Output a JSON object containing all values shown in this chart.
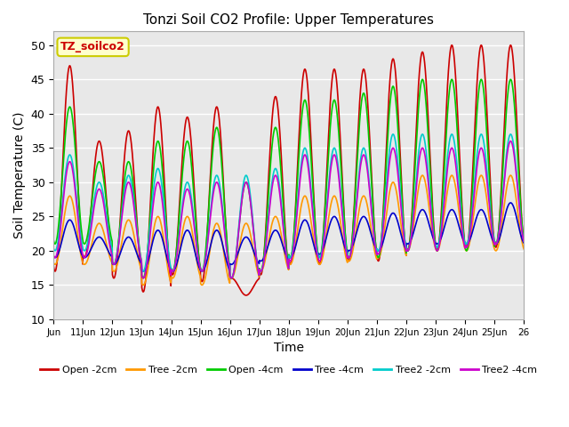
{
  "title": "Tonzi Soil CO2 Profile: Upper Temperatures",
  "xlabel": "Time",
  "ylabel": "Soil Temperature (C)",
  "ylim": [
    10,
    52
  ],
  "yticks": [
    10,
    15,
    20,
    25,
    30,
    35,
    40,
    45,
    50
  ],
  "xtick_labels": [
    "Jun",
    "11Jun",
    "12Jun",
    "13Jun",
    "14Jun",
    "15Jun",
    "16Jun",
    "17Jun",
    "18Jun",
    "19Jun",
    "20Jun",
    "21Jun",
    "22Jun",
    "23Jun",
    "24Jun",
    "25Jun",
    "26"
  ],
  "series": [
    {
      "label": "Open -2cm",
      "color": "#CC0000",
      "lw": 1.2
    },
    {
      "label": "Tree -2cm",
      "color": "#FF9900",
      "lw": 1.2
    },
    {
      "label": "Open -4cm",
      "color": "#00CC00",
      "lw": 1.2
    },
    {
      "label": "Tree -4cm",
      "color": "#0000CC",
      "lw": 1.2
    },
    {
      "label": "Tree2 -2cm",
      "color": "#00CCCC",
      "lw": 1.2
    },
    {
      "label": "Tree2 -4cm",
      "color": "#CC00CC",
      "lw": 1.2
    }
  ],
  "legend_box_color": "#FFFFCC",
  "legend_box_edge": "#CCCC00",
  "legend_text": "TZ_soilco2",
  "bg_color": "#E8E8E8",
  "grid_color": "#FFFFFF",
  "open2_peaks": [
    47,
    36,
    37.5,
    41,
    39.5,
    41,
    13.5,
    42.5,
    46.5,
    46.5,
    46.5,
    48,
    49,
    50,
    50,
    50
  ],
  "open2_trough": [
    17,
    19,
    16,
    14,
    16.5,
    15.5,
    16,
    16.5,
    18,
    18,
    18.5,
    18.5,
    20,
    20,
    20.5,
    20.5
  ],
  "tree2_peaks": [
    28,
    24,
    24.5,
    25,
    25,
    24,
    24,
    25,
    28,
    28,
    28,
    30,
    31,
    31,
    31,
    31
  ],
  "tree2_trough": [
    18,
    18,
    17,
    15,
    16,
    15,
    16,
    17,
    18,
    18,
    18.5,
    19,
    20,
    20,
    20,
    20
  ],
  "open4_peaks": [
    41,
    33,
    33,
    36,
    36,
    38,
    30,
    38,
    42,
    42,
    43,
    44,
    45,
    45,
    45,
    45
  ],
  "open4_trough": [
    21,
    21,
    18,
    16,
    17,
    17,
    16,
    17,
    19,
    19,
    19,
    19,
    20,
    20,
    20,
    21
  ],
  "tree4_peaks": [
    24.5,
    22,
    22,
    23,
    23,
    23,
    22,
    23,
    24.5,
    25,
    25,
    25.5,
    26,
    26,
    26,
    27
  ],
  "tree4_trough": [
    19,
    19,
    18,
    17,
    17,
    17,
    18,
    18.5,
    19,
    19.5,
    20,
    20,
    21,
    21,
    21,
    21
  ],
  "tree2_2_peaks": [
    34,
    30,
    31,
    32,
    30,
    31,
    31,
    32,
    35,
    35,
    35,
    37,
    37,
    37,
    37,
    37
  ],
  "tree2_2_trough": [
    20,
    20,
    18,
    17,
    17,
    17,
    16,
    17,
    19,
    19,
    19,
    20,
    20,
    20.5,
    21,
    21
  ],
  "tree2_4_peaks": [
    33,
    29,
    30,
    30,
    29,
    30,
    30,
    31,
    34,
    34,
    34,
    35,
    35,
    35,
    35,
    36
  ],
  "tree2_4_trough": [
    19,
    19,
    18,
    16,
    17,
    17,
    16,
    17,
    18.5,
    18.5,
    19,
    19.5,
    20,
    20,
    20.5,
    21
  ]
}
